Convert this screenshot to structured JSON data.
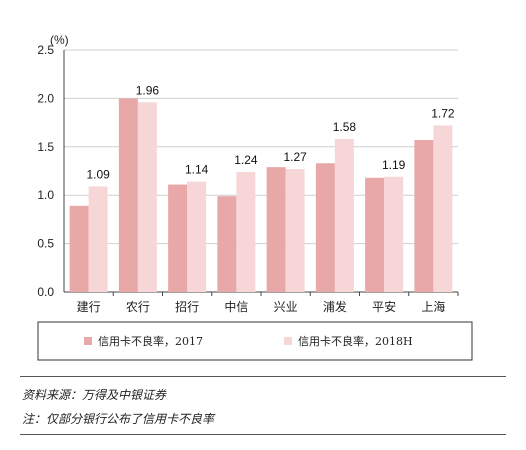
{
  "chart_data": {
    "type": "bar",
    "unit": "(%)",
    "categories": [
      "建行",
      "农行",
      "招行",
      "中信",
      "兴业",
      "浦发",
      "平安",
      "上海"
    ],
    "series": [
      {
        "name": "信用卡不良率，2017",
        "color": "#e8a8a8",
        "values": [
          0.89,
          2.0,
          1.11,
          0.99,
          1.29,
          1.33,
          1.18,
          1.57
        ]
      },
      {
        "name": "信用卡不良率，2018H",
        "color": "#f6d6d6",
        "values": [
          1.09,
          1.96,
          1.14,
          1.24,
          1.27,
          1.58,
          1.19,
          1.72
        ],
        "data_labels": [
          "1.09",
          "1.96",
          "1.14",
          "1.24",
          "1.27",
          "1.58",
          "1.19",
          "1.72"
        ]
      }
    ],
    "ylim": [
      0,
      2.5
    ],
    "yticks": [
      "0.0",
      "0.5",
      "1.0",
      "1.5",
      "2.0",
      "2.5"
    ],
    "grid": true,
    "legend_position": "bottom"
  },
  "notes": {
    "source": "资料来源：万得及中银证券",
    "footnote": "注：仅部分银行公布了信用卡不良率"
  }
}
